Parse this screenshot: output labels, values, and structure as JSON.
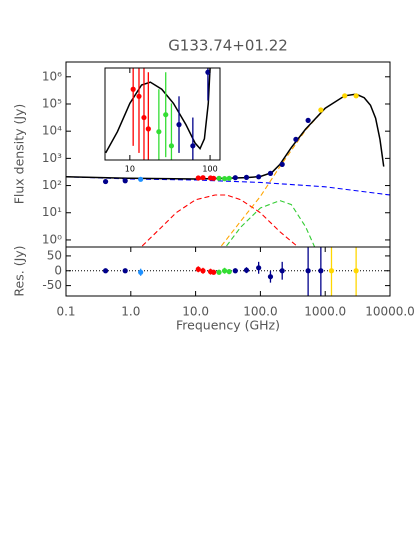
{
  "chart_data": [
    {
      "type": "scatter",
      "title": "G133.74+01.22",
      "ylabel": "Flux density (Jy)",
      "xlog": true,
      "ylog": true,
      "xlim": [
        0.1,
        10000
      ],
      "ylim": [
        0.55,
        3500000
      ],
      "yticks": [
        {
          "value": 1,
          "label": "10⁰"
        },
        {
          "value": 10,
          "label": "10¹"
        },
        {
          "value": 100,
          "label": "10²"
        },
        {
          "value": 1000,
          "label": "10³"
        },
        {
          "value": 10000,
          "label": "10⁴"
        },
        {
          "value": 100000,
          "label": "10⁵"
        },
        {
          "value": 1000000,
          "label": "10⁶"
        }
      ],
      "series": [
        {
          "style": "dashed",
          "color": "#0000ff",
          "x": [
            0.1,
            1,
            10,
            100,
            1000,
            10000
          ],
          "values": [
            210,
            175,
            160,
            130,
            90,
            45
          ]
        },
        {
          "style": "dashed",
          "color": "#ff0000",
          "x": [
            1.5,
            3,
            5,
            10,
            20,
            30,
            50,
            100,
            200,
            400
          ],
          "values": [
            0.6,
            3,
            10,
            30,
            45,
            45,
            30,
            10,
            2,
            0.5
          ]
        },
        {
          "style": "dashed",
          "color": "#33cc33",
          "x": [
            30,
            50,
            100,
            200,
            300,
            500,
            700
          ],
          "values": [
            0.6,
            3,
            15,
            28,
            20,
            3,
            0.5
          ]
        },
        {
          "style": "dashed",
          "color": "#ffa500",
          "x": [
            25,
            50,
            100,
            200,
            500,
            1000
          ],
          "values": [
            0.6,
            5,
            40,
            500,
            11000,
            70000
          ]
        },
        {
          "style": "solid",
          "color": "#000000",
          "x": [
            0.1,
            1,
            10,
            30,
            60,
            100,
            150,
            200,
            300,
            500,
            1000,
            2000,
            3000,
            4000,
            5000,
            6000,
            7000,
            8000
          ],
          "values": [
            210,
            185,
            175,
            185,
            195,
            215,
            300,
            600,
            2500,
            12000,
            70000,
            200000,
            230000,
            170000,
            90000,
            30000,
            5000,
            500
          ]
        },
        {
          "style": "points",
          "color": "#00008b",
          "x": [
            0.408,
            0.82,
            41,
            61,
            94,
            143,
            217,
            353,
            545
          ],
          "values": [
            140,
            150,
            195,
            200,
            210,
            280,
            600,
            5000,
            25000
          ]
        },
        {
          "style": "points",
          "color": "#1e90ff",
          "x": [
            1.42
          ],
          "values": [
            170
          ]
        },
        {
          "style": "points",
          "color": "#ff0000",
          "x": [
            11,
            13,
            17,
            19
          ],
          "values": [
            190,
            195,
            190,
            185
          ]
        },
        {
          "style": "points",
          "color": "#33dd33",
          "x": [
            23,
            28,
            33
          ],
          "values": [
            185,
            180,
            185
          ]
        },
        {
          "style": "points",
          "color": "#ffd700",
          "x": [
            857,
            2000,
            3000
          ],
          "values": [
            60000,
            200000,
            200000
          ]
        }
      ]
    },
    {
      "type": "scatter",
      "ylabel": "Res. (Jy)",
      "xlabel": "Frequency (GHz)",
      "xlog": true,
      "ylog": false,
      "xlim": [
        0.1,
        10000
      ],
      "ylim": [
        -85,
        80
      ],
      "reference_line": 0,
      "xticks": [
        0.1,
        {
          "value": 1,
          "label": "1.0"
        },
        {
          "value": 10,
          "label": "10.0"
        },
        {
          "value": 100,
          "label": "100.0"
        },
        {
          "value": 1000,
          "label": "1000.0"
        },
        {
          "value": 10000,
          "label": "10000.0"
        }
      ],
      "yticks": [
        50,
        0,
        -50
      ],
      "series": [
        {
          "style": "points",
          "color": "#00008b",
          "x": [
            0.408,
            0.82,
            41,
            61,
            94,
            143,
            217,
            545,
            857
          ],
          "values": [
            0,
            0,
            0,
            2,
            10,
            -20,
            0,
            0,
            0
          ],
          "errors": [
            3,
            3,
            8,
            10,
            20,
            20,
            30,
            200,
            200
          ]
        },
        {
          "style": "points",
          "color": "#1e90ff",
          "x": [
            1.42
          ],
          "values": [
            -5
          ],
          "errors": [
            12
          ]
        },
        {
          "style": "points",
          "color": "#ff0000",
          "x": [
            11,
            13,
            17,
            19
          ],
          "values": [
            5,
            0,
            -3,
            -5
          ],
          "errors": [
            10,
            10,
            10,
            8
          ]
        },
        {
          "style": "points",
          "color": "#33dd33",
          "x": [
            23,
            28,
            33
          ],
          "values": [
            -5,
            0,
            -3
          ],
          "errors": [
            8,
            10,
            8
          ]
        },
        {
          "style": "points",
          "color": "#ffd700",
          "x": [
            1250,
            3000
          ],
          "values": [
            0,
            0
          ],
          "errors": [
            200,
            200
          ]
        }
      ]
    },
    {
      "type": "scatter",
      "xlog": true,
      "ylog": false,
      "xlim": [
        4.9,
        133
      ],
      "ylim": [
        150,
        215
      ],
      "xticks": [
        10,
        100
      ],
      "series": [
        {
          "style": "solid",
          "color": "#000000",
          "x": [
            5,
            7,
            10,
            14,
            18,
            25,
            35,
            50,
            65,
            75,
            85,
            95,
            100
          ],
          "values": [
            155,
            170,
            190,
            203,
            205,
            200,
            190,
            175,
            162,
            158,
            165,
            190,
            215
          ]
        },
        {
          "style": "points",
          "color": "#ff0000",
          "x": [
            11,
            13,
            15,
            17
          ],
          "values": [
            200,
            195,
            180,
            172
          ],
          "errors": [
            40,
            40,
            40,
            40
          ]
        },
        {
          "style": "points",
          "color": "#33dd33",
          "x": [
            23,
            28,
            33
          ],
          "values": [
            170,
            182,
            160
          ],
          "errors": [
            30,
            30,
            30
          ]
        },
        {
          "style": "points",
          "color": "#00008b",
          "x": [
            41,
            61,
            94
          ],
          "values": [
            175,
            160,
            212
          ],
          "errors": [
            20,
            20,
            20
          ]
        }
      ]
    }
  ]
}
